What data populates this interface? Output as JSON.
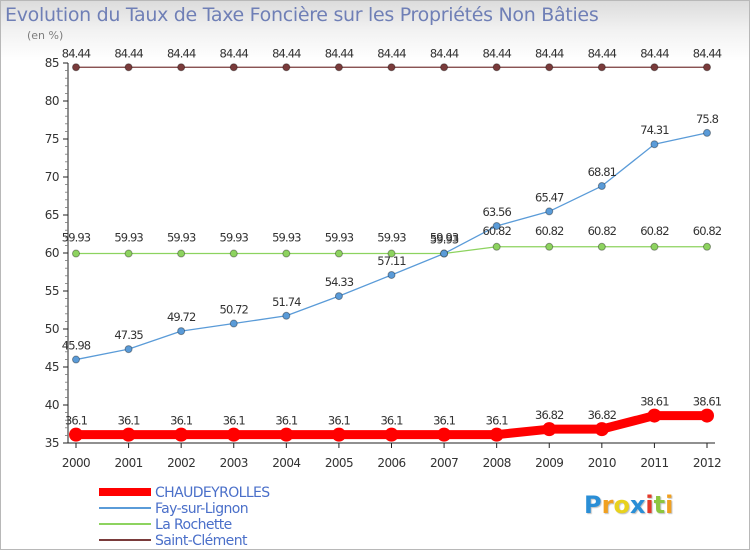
{
  "chart_data": {
    "type": "line",
    "title": "Evolution du Taux de Taxe Foncière sur les Propriétés Non Bâties",
    "subtitle": "(en %)",
    "x": [
      "2000",
      "2001",
      "2002",
      "2003",
      "2004",
      "2005",
      "2006",
      "2007",
      "2008",
      "2009",
      "2010",
      "2011",
      "2012"
    ],
    "ylim": [
      35,
      85
    ],
    "yticks": [
      35,
      40,
      45,
      50,
      55,
      60,
      65,
      70,
      75,
      80,
      85
    ],
    "series": [
      {
        "name": "CHAUDEYROLLES",
        "color": "#ff0000",
        "values": [
          36.1,
          36.1,
          36.1,
          36.1,
          36.1,
          36.1,
          36.1,
          36.1,
          36.1,
          36.82,
          36.82,
          38.61,
          38.61
        ],
        "labels": [
          "36.1",
          "36.1",
          "36.1",
          "36.1",
          "36.1",
          "36.1",
          "36.1",
          "36.1",
          "36.1",
          "36.82",
          "36.82",
          "38.61",
          "38.61"
        ]
      },
      {
        "name": "Fay-sur-Lignon",
        "color": "#5a9bd8",
        "values": [
          45.98,
          47.35,
          49.72,
          50.72,
          51.74,
          54.33,
          57.11,
          59.93,
          63.56,
          65.47,
          68.81,
          74.31,
          75.8
        ],
        "labels": [
          "45.98",
          "47.35",
          "49.72",
          "50.72",
          "51.74",
          "54.33",
          "57.11",
          "59.93",
          "63.56",
          "65.47",
          "68.81",
          "74.31",
          "75.8"
        ]
      },
      {
        "name": "La Rochette",
        "color": "#8dd35f",
        "values": [
          59.93,
          59.93,
          59.93,
          59.93,
          59.93,
          59.93,
          59.93,
          59.93,
          60.82,
          60.82,
          60.82,
          60.82,
          60.82
        ],
        "labels": [
          "59.93",
          "59.93",
          "59.93",
          "59.93",
          "59.93",
          "59.93",
          "59.93",
          "59.93",
          "60.82",
          "60.82",
          "60.82",
          "60.82",
          "60.82"
        ]
      },
      {
        "name": "Saint-Clément",
        "color": "#7a3b3b",
        "values": [
          84.44,
          84.44,
          84.44,
          84.44,
          84.44,
          84.44,
          84.44,
          84.44,
          84.44,
          84.44,
          84.44,
          84.44,
          84.44
        ],
        "labels": [
          "84.44",
          "84.44",
          "84.44",
          "84.44",
          "84.44",
          "84.44",
          "84.44",
          "84.44",
          "84.44",
          "84.44",
          "84.44",
          "84.44",
          "84.44"
        ]
      }
    ],
    "grid": false,
    "legend_position": "bottom-left"
  },
  "brand": {
    "letters": [
      "P",
      "r",
      "o",
      "x",
      "i",
      "t",
      "i"
    ],
    "colors": [
      "#2a8ed6",
      "#f0a020",
      "#e8d21e",
      "#2a8ed6",
      "#e23a2a",
      "#8dc63f",
      "#f0a020"
    ]
  }
}
